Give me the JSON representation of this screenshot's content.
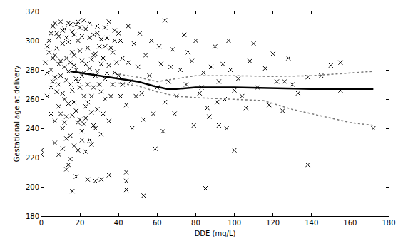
{
  "chart_data": {
    "type": "scatter",
    "x_label": "DDE (mg/L)",
    "y_label": "Gestational age at delivery",
    "xlim": [
      0,
      180
    ],
    "ylim": [
      180,
      320
    ],
    "xticks": [
      0,
      20,
      40,
      60,
      80,
      100,
      120,
      140,
      160,
      180
    ],
    "yticks": [
      180,
      200,
      220,
      240,
      260,
      280,
      300,
      320
    ],
    "grid": false,
    "series": [
      {
        "type": "scatter",
        "marker": "x",
        "color": "#000000",
        "x": [
          5,
          6,
          7,
          8,
          9,
          10,
          11,
          12,
          13,
          14,
          15,
          16,
          17,
          18,
          19,
          20,
          21,
          22,
          23,
          24,
          25,
          26,
          27,
          28,
          29,
          30,
          31,
          32,
          33,
          34,
          4,
          6,
          8,
          10,
          12,
          14,
          16,
          18,
          20,
          22,
          3,
          5,
          7,
          9,
          11,
          13,
          15,
          17,
          19,
          21,
          23,
          25,
          27,
          29,
          31,
          33,
          35,
          37,
          39,
          41,
          36,
          38,
          40,
          42,
          44,
          46,
          48,
          50,
          52,
          54,
          56,
          58,
          60,
          62,
          64,
          66,
          68,
          70,
          72,
          75,
          78,
          80,
          82,
          84,
          86,
          88,
          90,
          92,
          95,
          98,
          102,
          104,
          108,
          112,
          116,
          118,
          122,
          128,
          133,
          145,
          0,
          0,
          85,
          53,
          138,
          172,
          16,
          150,
          155,
          155,
          138,
          100,
          110,
          120,
          125,
          126,
          130,
          96,
          92,
          64,
          44,
          44,
          44,
          28,
          31,
          24,
          35,
          13,
          14,
          18,
          2,
          3,
          4,
          5,
          6,
          7,
          8,
          9,
          10,
          11,
          12,
          13,
          14,
          15,
          16,
          17,
          18,
          19,
          20,
          21,
          22,
          23,
          24,
          25,
          26,
          27,
          28,
          29,
          30,
          31,
          32,
          33,
          34,
          35,
          36,
          37,
          38,
          40,
          42,
          45,
          7,
          9,
          11,
          13,
          15,
          17,
          19,
          21,
          23,
          26,
          10,
          12,
          14,
          16,
          18,
          20,
          22,
          24,
          26,
          28,
          47,
          49,
          51,
          53,
          57,
          59,
          61,
          63,
          67,
          69,
          74,
          76,
          79,
          83,
          87,
          91,
          94,
          97,
          100,
          106,
          3,
          5,
          7,
          9,
          11,
          13,
          15,
          17,
          19,
          21,
          23,
          25,
          27,
          29,
          31,
          33,
          35,
          38,
          41,
          45
        ],
        "values": [
          280,
          272,
          290,
          265,
          284,
          276,
          298,
          260,
          288,
          279,
          270,
          292,
          283,
          274,
          300,
          268,
          286,
          278,
          255,
          295,
          281,
          262,
          290,
          276,
          305,
          270,
          284,
          250,
          296,
          278,
          300,
          310,
          305,
          313,
          308,
          312,
          306,
          311,
          309,
          314,
          262,
          250,
          245,
          255,
          240,
          248,
          235,
          258,
          244,
          238,
          247,
          232,
          242,
          253,
          236,
          260,
          245,
          270,
          285,
          262,
          295,
          300,
          276,
          288,
          256,
          272,
          298,
          282,
          264,
          290,
          276,
          250,
          268,
          284,
          258,
          272,
          294,
          262,
          280,
          270,
          286,
          300,
          264,
          278,
          254,
          282,
          296,
          272,
          260,
          280,
          274,
          262,
          286,
          268,
          281,
          256,
          272,
          288,
          264,
          276,
          225,
          222,
          199,
          194,
          215,
          240,
          197,
          283,
          285,
          266,
          275,
          225,
          298,
          291,
          252,
          272,
          270,
          240,
          242,
          314,
          198,
          210,
          204,
          204,
          205,
          205,
          208,
          212,
          215,
          207,
          285,
          278,
          292,
          268,
          288,
          275,
          295,
          270,
          286,
          264,
          282,
          273,
          299,
          285,
          266,
          290,
          280,
          272,
          293,
          276,
          262,
          284,
          270,
          302,
          287,
          268,
          291,
          279,
          296,
          265,
          288,
          274,
          302,
          283,
          262,
          292,
          278,
          305,
          270,
          285,
          230,
          222,
          226,
          233,
          219,
          228,
          225,
          232,
          224,
          229,
          250,
          244,
          257,
          249,
          252,
          246,
          243,
          258,
          251,
          240,
          240,
          262,
          305,
          246,
          300,
          226,
          296,
          238,
          282,
          250,
          304,
          292,
          242,
          268,
          248,
          258,
          284,
          300,
          266,
          254,
          296,
          305,
          312,
          303,
          307,
          302,
          311,
          304,
          313,
          303,
          308,
          312,
          304,
          310,
          301,
          309,
          313,
          307,
          300,
          310
        ]
      },
      {
        "type": "line",
        "line_style": "solid",
        "color": "#000000",
        "x": [
          15,
          30,
          40,
          50,
          58,
          65,
          70,
          80,
          100,
          120,
          140,
          172
        ],
        "values": [
          279,
          276,
          274,
          272,
          269,
          267,
          267,
          268,
          268,
          267.5,
          267,
          267
        ]
      },
      {
        "type": "line",
        "line_style": "dotted",
        "color": "#777777",
        "x": [
          40,
          50,
          60,
          70,
          80,
          100,
          120,
          140,
          160,
          172
        ],
        "values": [
          277,
          275,
          272,
          274,
          276,
          276,
          275.5,
          276,
          278,
          279
        ]
      },
      {
        "type": "line",
        "line_style": "dotted",
        "color": "#777777",
        "x": [
          40,
          50,
          60,
          70,
          80,
          100,
          115,
          120,
          130,
          140,
          150,
          160,
          172
        ],
        "values": [
          271,
          269,
          265,
          262,
          261,
          260,
          259,
          257,
          253,
          250,
          247,
          244,
          242
        ]
      }
    ]
  }
}
